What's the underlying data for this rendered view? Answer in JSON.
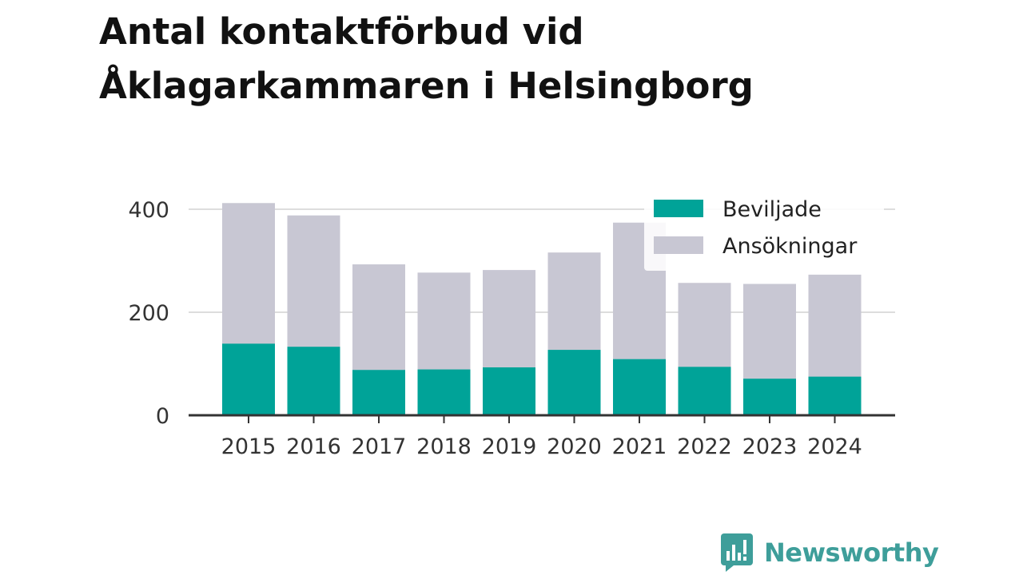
{
  "title": "Antal kontaktförbud vid Åklagarkammaren i Helsingborg",
  "brand": {
    "name": "Newsworthy",
    "icon": "bar-chart-speech-bubble-icon"
  },
  "colors": {
    "beviljade": "#00a398",
    "ansokningar": "#c8c7d3",
    "grid": "#dddddd",
    "axis": "#333333"
  },
  "chart_data": {
    "type": "bar",
    "stacked": false,
    "overlay": true,
    "categories": [
      "2015",
      "2016",
      "2017",
      "2018",
      "2019",
      "2020",
      "2021",
      "2022",
      "2023",
      "2024"
    ],
    "series": [
      {
        "name": "Ansökningar",
        "values": [
          412,
          388,
          293,
          277,
          282,
          316,
          374,
          257,
          255,
          273
        ]
      },
      {
        "name": "Beviljade",
        "values": [
          139,
          133,
          88,
          89,
          93,
          127,
          109,
          94,
          71,
          75
        ]
      }
    ],
    "yticks": [
      0,
      200,
      400
    ],
    "ylim": [
      0,
      430
    ],
    "grid": true,
    "legend": {
      "position": "top-right",
      "entries": [
        "Beviljade",
        "Ansökningar"
      ]
    }
  }
}
